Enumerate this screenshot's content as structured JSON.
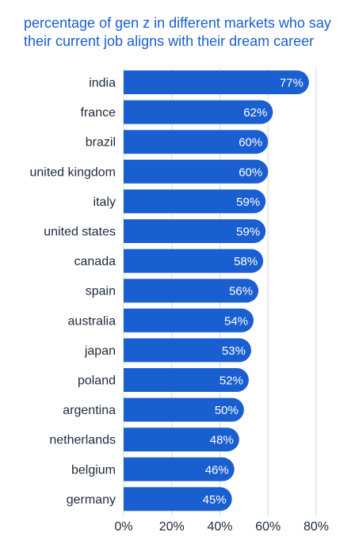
{
  "chart_data": {
    "type": "bar",
    "orientation": "horizontal",
    "title_lines": [
      "percentage of gen z in different markets who say",
      "their current job aligns with their dream career"
    ],
    "categories": [
      "india",
      "france",
      "brazil",
      "united kingdom",
      "italy",
      "united states",
      "canada",
      "spain",
      "australia",
      "japan",
      "poland",
      "argentina",
      "netherlands",
      "belgium",
      "germany"
    ],
    "values": [
      77,
      62,
      60,
      60,
      59,
      59,
      58,
      56,
      54,
      53,
      52,
      50,
      48,
      46,
      45
    ],
    "value_labels": [
      "77%",
      "62%",
      "60%",
      "60%",
      "59%",
      "59%",
      "58%",
      "56%",
      "54%",
      "53%",
      "52%",
      "50%",
      "48%",
      "46%",
      "45%"
    ],
    "xlim": [
      0,
      80
    ],
    "xticks": [
      0,
      20,
      40,
      60,
      80
    ],
    "xtick_labels": [
      "0%",
      "20%",
      "40%",
      "60%",
      "80%"
    ],
    "grid": true,
    "colors": {
      "bar": "#1a5fd0",
      "title": "#1a5fd0",
      "grid": "#d9d9d9",
      "text": "#1e2a3a"
    }
  }
}
